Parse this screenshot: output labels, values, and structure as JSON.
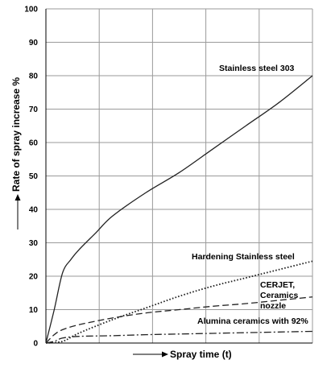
{
  "chart_data": {
    "type": "line",
    "xlabel": "Spray time (t)",
    "ylabel": "Rate of spray increase %",
    "ylim": [
      0,
      100
    ],
    "yticks": [
      0,
      10,
      20,
      30,
      40,
      50,
      60,
      70,
      80,
      90,
      100
    ],
    "xlim": [
      0,
      8
    ],
    "x_ticks_labeled": false,
    "grid": true,
    "series": [
      {
        "name": "Stainless steel 303",
        "style": "solid",
        "x": [
          0,
          0.25,
          0.5,
          0.75,
          1,
          1.5,
          2,
          3,
          4,
          5,
          6,
          7,
          8
        ],
        "values": [
          0,
          10,
          21,
          25,
          28,
          33,
          38,
          45,
          51,
          58,
          65,
          72,
          80
        ]
      },
      {
        "name": "Hardening Stainless steel",
        "style": "dotted",
        "x": [
          0,
          0.5,
          1,
          2,
          3,
          4,
          5,
          6,
          7,
          8
        ],
        "values": [
          0,
          0.5,
          3,
          7,
          10.5,
          14,
          17,
          19.5,
          22,
          24.5
        ]
      },
      {
        "name": "CERJET, Ceramics nozzle",
        "style": "dashed",
        "x": [
          0,
          0.25,
          0.5,
          1,
          2,
          3,
          4,
          5,
          6,
          7,
          8
        ],
        "values": [
          0,
          2.5,
          4,
          5.5,
          7.5,
          9,
          10,
          11,
          11.8,
          12.8,
          13.8
        ]
      },
      {
        "name": "Alumina ceramics with 92%",
        "style": "dashdot",
        "x": [
          0,
          0.25,
          0.5,
          1,
          2,
          3,
          4,
          5,
          6,
          7,
          8
        ],
        "values": [
          0,
          0.5,
          1.5,
          2,
          2.2,
          2.5,
          2.7,
          2.9,
          3.1,
          3.3,
          3.5
        ]
      }
    ],
    "annotations": [
      "Stainless steel 303",
      "Hardening Stainless steel",
      "CERJET,",
      "Ceramics",
      "nozzle",
      "Alumina ceramics with 92%"
    ]
  }
}
